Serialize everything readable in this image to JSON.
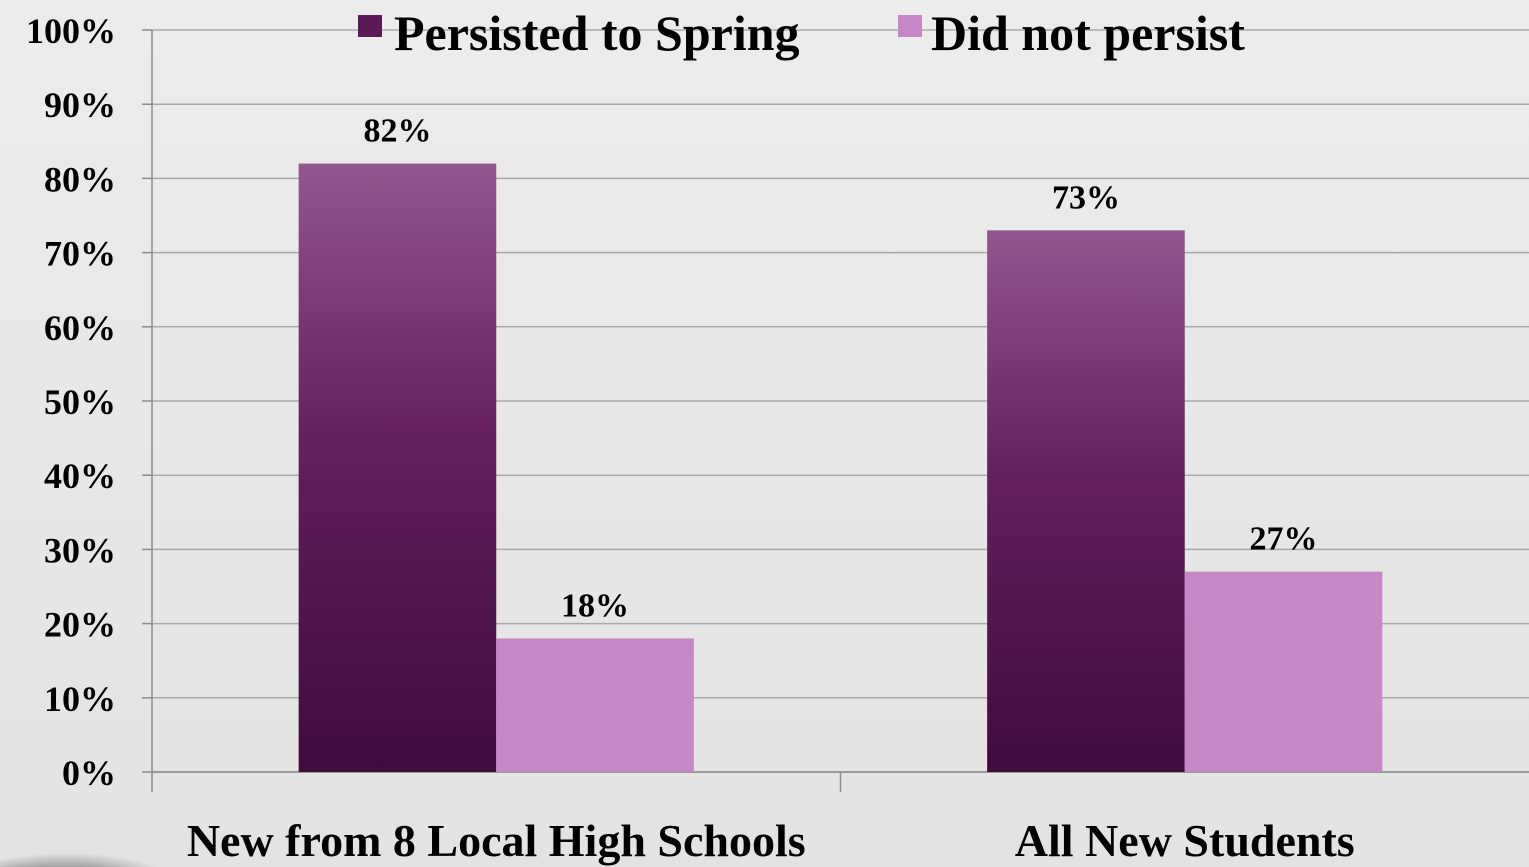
{
  "chart_data": {
    "type": "bar",
    "categories": [
      "New from 8 Local High Schools",
      "All New Students"
    ],
    "series": [
      {
        "name": "Persisted to Spring",
        "values": [
          82,
          73
        ],
        "color": "#6a2466"
      },
      {
        "name": "Did not persist",
        "values": [
          18,
          27
        ],
        "color": "#c587c5"
      }
    ],
    "data_labels": [
      [
        "82%",
        "73%"
      ],
      [
        "18%",
        "27%"
      ]
    ],
    "yticks": [
      "0%",
      "10%",
      "20%",
      "30%",
      "40%",
      "50%",
      "60%",
      "70%",
      "80%",
      "90%",
      "100%"
    ],
    "ylim": [
      0,
      100
    ],
    "ystep": 10,
    "grid": true,
    "legend": "top-center"
  }
}
